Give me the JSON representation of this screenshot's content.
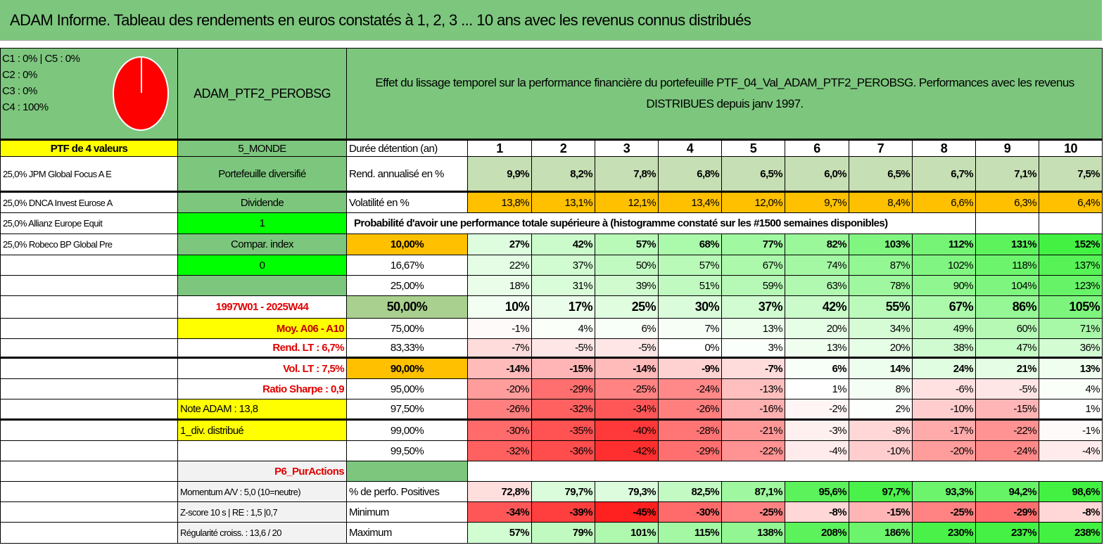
{
  "title": "ADAM Informe. Tableau des rendements en euros constatés à 1, 2, 3 ... 10 ans avec les revenus connus distribués",
  "header": {
    "legend": [
      "C1 : 0% | C5 : 0%",
      "C2 : 0%",
      "C3 : 0%",
      "C4 : 100%"
    ],
    "pie_slices": [
      {
        "label": "C4",
        "value": 100,
        "color": "#ff0000"
      }
    ],
    "portfolio_name": "ADAM_PTF2_PEROBSG",
    "description": "Effet du lissage temporel sur la performance financière du portefeuille PTF_04_Val_ADAM_PTF2_PEROBSG. Performances avec les revenus DISTRIBUES depuis janv 1997."
  },
  "probability_caption": "Probabilité d'avoir une performance totale supérieure à (histogramme constaté sur les #1500 semaines disponibles)",
  "colors": {
    "title_bg": "#7dc67e",
    "neg": "#ff2020",
    "pos": "#22ee22",
    "orange": "#ffc000",
    "yellow": "#ffff00",
    "rend_bg": "#c6dfb4",
    "p50_bg": "#a9d08e"
  },
  "rows": [
    {
      "a": "PTF de 4 valeurs",
      "b": "5_MONDE",
      "c": "Durée détention (an)",
      "vals": [
        "1",
        "2",
        "3",
        "4",
        "5",
        "6",
        "7",
        "8",
        "9",
        "10"
      ]
    },
    {
      "a": "25,0% JPM Global Focus A E",
      "b": "Portefeuille diversifié",
      "c": "Rend. annualisé en %",
      "vals": [
        "9,9%",
        "8,2%",
        "7,8%",
        "6,8%",
        "6,5%",
        "6,0%",
        "6,5%",
        "6,7%",
        "7,1%",
        "7,5%"
      ]
    },
    {
      "a": "25,0% DNCA Invest Eurose A",
      "b": "Dividende",
      "c": "Volatilité en %",
      "vals": [
        "13,8%",
        "13,1%",
        "12,1%",
        "13,4%",
        "12,0%",
        "9,7%",
        "8,4%",
        "6,6%",
        "6,3%",
        "6,4%"
      ]
    },
    {
      "a": "25,0% Allianz Europe Equit",
      "b": "1",
      "c": "",
      "vals": []
    },
    {
      "a": "25,0% Robeco BP Global Pre",
      "b": "Compar. index",
      "c": "10,00%",
      "vals": [
        "27%",
        "42%",
        "57%",
        "68%",
        "77%",
        "82%",
        "103%",
        "112%",
        "131%",
        "152%"
      ]
    },
    {
      "a": "",
      "b": "0",
      "c": "16,67%",
      "vals": [
        "22%",
        "37%",
        "50%",
        "57%",
        "67%",
        "74%",
        "87%",
        "102%",
        "118%",
        "137%"
      ]
    },
    {
      "a": "",
      "b": "",
      "c": "25,00%",
      "vals": [
        "18%",
        "31%",
        "39%",
        "51%",
        "59%",
        "63%",
        "78%",
        "90%",
        "104%",
        "123%"
      ]
    },
    {
      "a": "",
      "b": "1997W01 - 2025W44",
      "c": "50,00%",
      "vals": [
        "10%",
        "17%",
        "25%",
        "30%",
        "37%",
        "42%",
        "55%",
        "67%",
        "86%",
        "105%"
      ]
    },
    {
      "a": "",
      "b": "Moy. A06 - A10",
      "c": "75,00%",
      "vals": [
        "-1%",
        "4%",
        "6%",
        "7%",
        "13%",
        "20%",
        "34%",
        "49%",
        "60%",
        "71%"
      ]
    },
    {
      "a": "",
      "b": "Rend. LT : 6,7%",
      "c": "83,33%",
      "vals": [
        "-7%",
        "-5%",
        "-5%",
        "0%",
        "3%",
        "13%",
        "20%",
        "38%",
        "47%",
        "36%"
      ]
    },
    {
      "a": "",
      "b": "Vol. LT : 7,5%",
      "c": "90,00%",
      "vals": [
        "-14%",
        "-15%",
        "-14%",
        "-9%",
        "-7%",
        "6%",
        "14%",
        "24%",
        "21%",
        "13%"
      ]
    },
    {
      "a": "",
      "b": "Ratio Sharpe : 0,9",
      "c": "95,00%",
      "vals": [
        "-20%",
        "-29%",
        "-25%",
        "-24%",
        "-13%",
        "1%",
        "8%",
        "-6%",
        "-5%",
        "4%"
      ]
    },
    {
      "a": "",
      "b": "Note ADAM : 13,8",
      "c": "97,50%",
      "vals": [
        "-26%",
        "-32%",
        "-34%",
        "-26%",
        "-16%",
        "-2%",
        "2%",
        "-10%",
        "-15%",
        "1%"
      ]
    },
    {
      "a": "",
      "b": "1_div. distribué",
      "c": "99,00%",
      "vals": [
        "-30%",
        "-35%",
        "-40%",
        "-28%",
        "-21%",
        "-3%",
        "-8%",
        "-17%",
        "-22%",
        "-1%"
      ]
    },
    {
      "a": "",
      "b": "",
      "c": "99,50%",
      "vals": [
        "-32%",
        "-36%",
        "-42%",
        "-29%",
        "-22%",
        "-4%",
        "-10%",
        "-20%",
        "-24%",
        "-4%"
      ]
    },
    {
      "a": "",
      "b": "P6_PurActions",
      "c": "",
      "vals": []
    },
    {
      "a": "",
      "b": "Momentum A/V : 5,0 (10=neutre)",
      "c": "% de perfo. Positives",
      "vals": [
        "72,8%",
        "79,7%",
        "79,3%",
        "82,5%",
        "87,1%",
        "95,6%",
        "97,7%",
        "93,3%",
        "94,2%",
        "98,6%"
      ]
    },
    {
      "a": "",
      "b": "Z-score 10 s | RE : 1,5 |0,7",
      "c": "Minimum",
      "vals": [
        "-34%",
        "-39%",
        "-45%",
        "-30%",
        "-25%",
        "-8%",
        "-15%",
        "-25%",
        "-29%",
        "-8%"
      ]
    },
    {
      "a": "",
      "b": "Régularité croiss. : 13,6 / 20",
      "c": "Maximum",
      "vals": [
        "57%",
        "79%",
        "101%",
        "115%",
        "138%",
        "208%",
        "186%",
        "230%",
        "237%",
        "238%"
      ]
    }
  ],
  "color_scales": {
    "prob": {
      "min": -45,
      "mid": 0,
      "max": 152
    },
    "positives": {
      "min": 60,
      "mid": 75,
      "max": 98.6
    },
    "minimum": {
      "min": -45,
      "mid": 0,
      "max": 1
    },
    "maximum": {
      "min": -1,
      "mid": 0,
      "max": 238
    }
  }
}
